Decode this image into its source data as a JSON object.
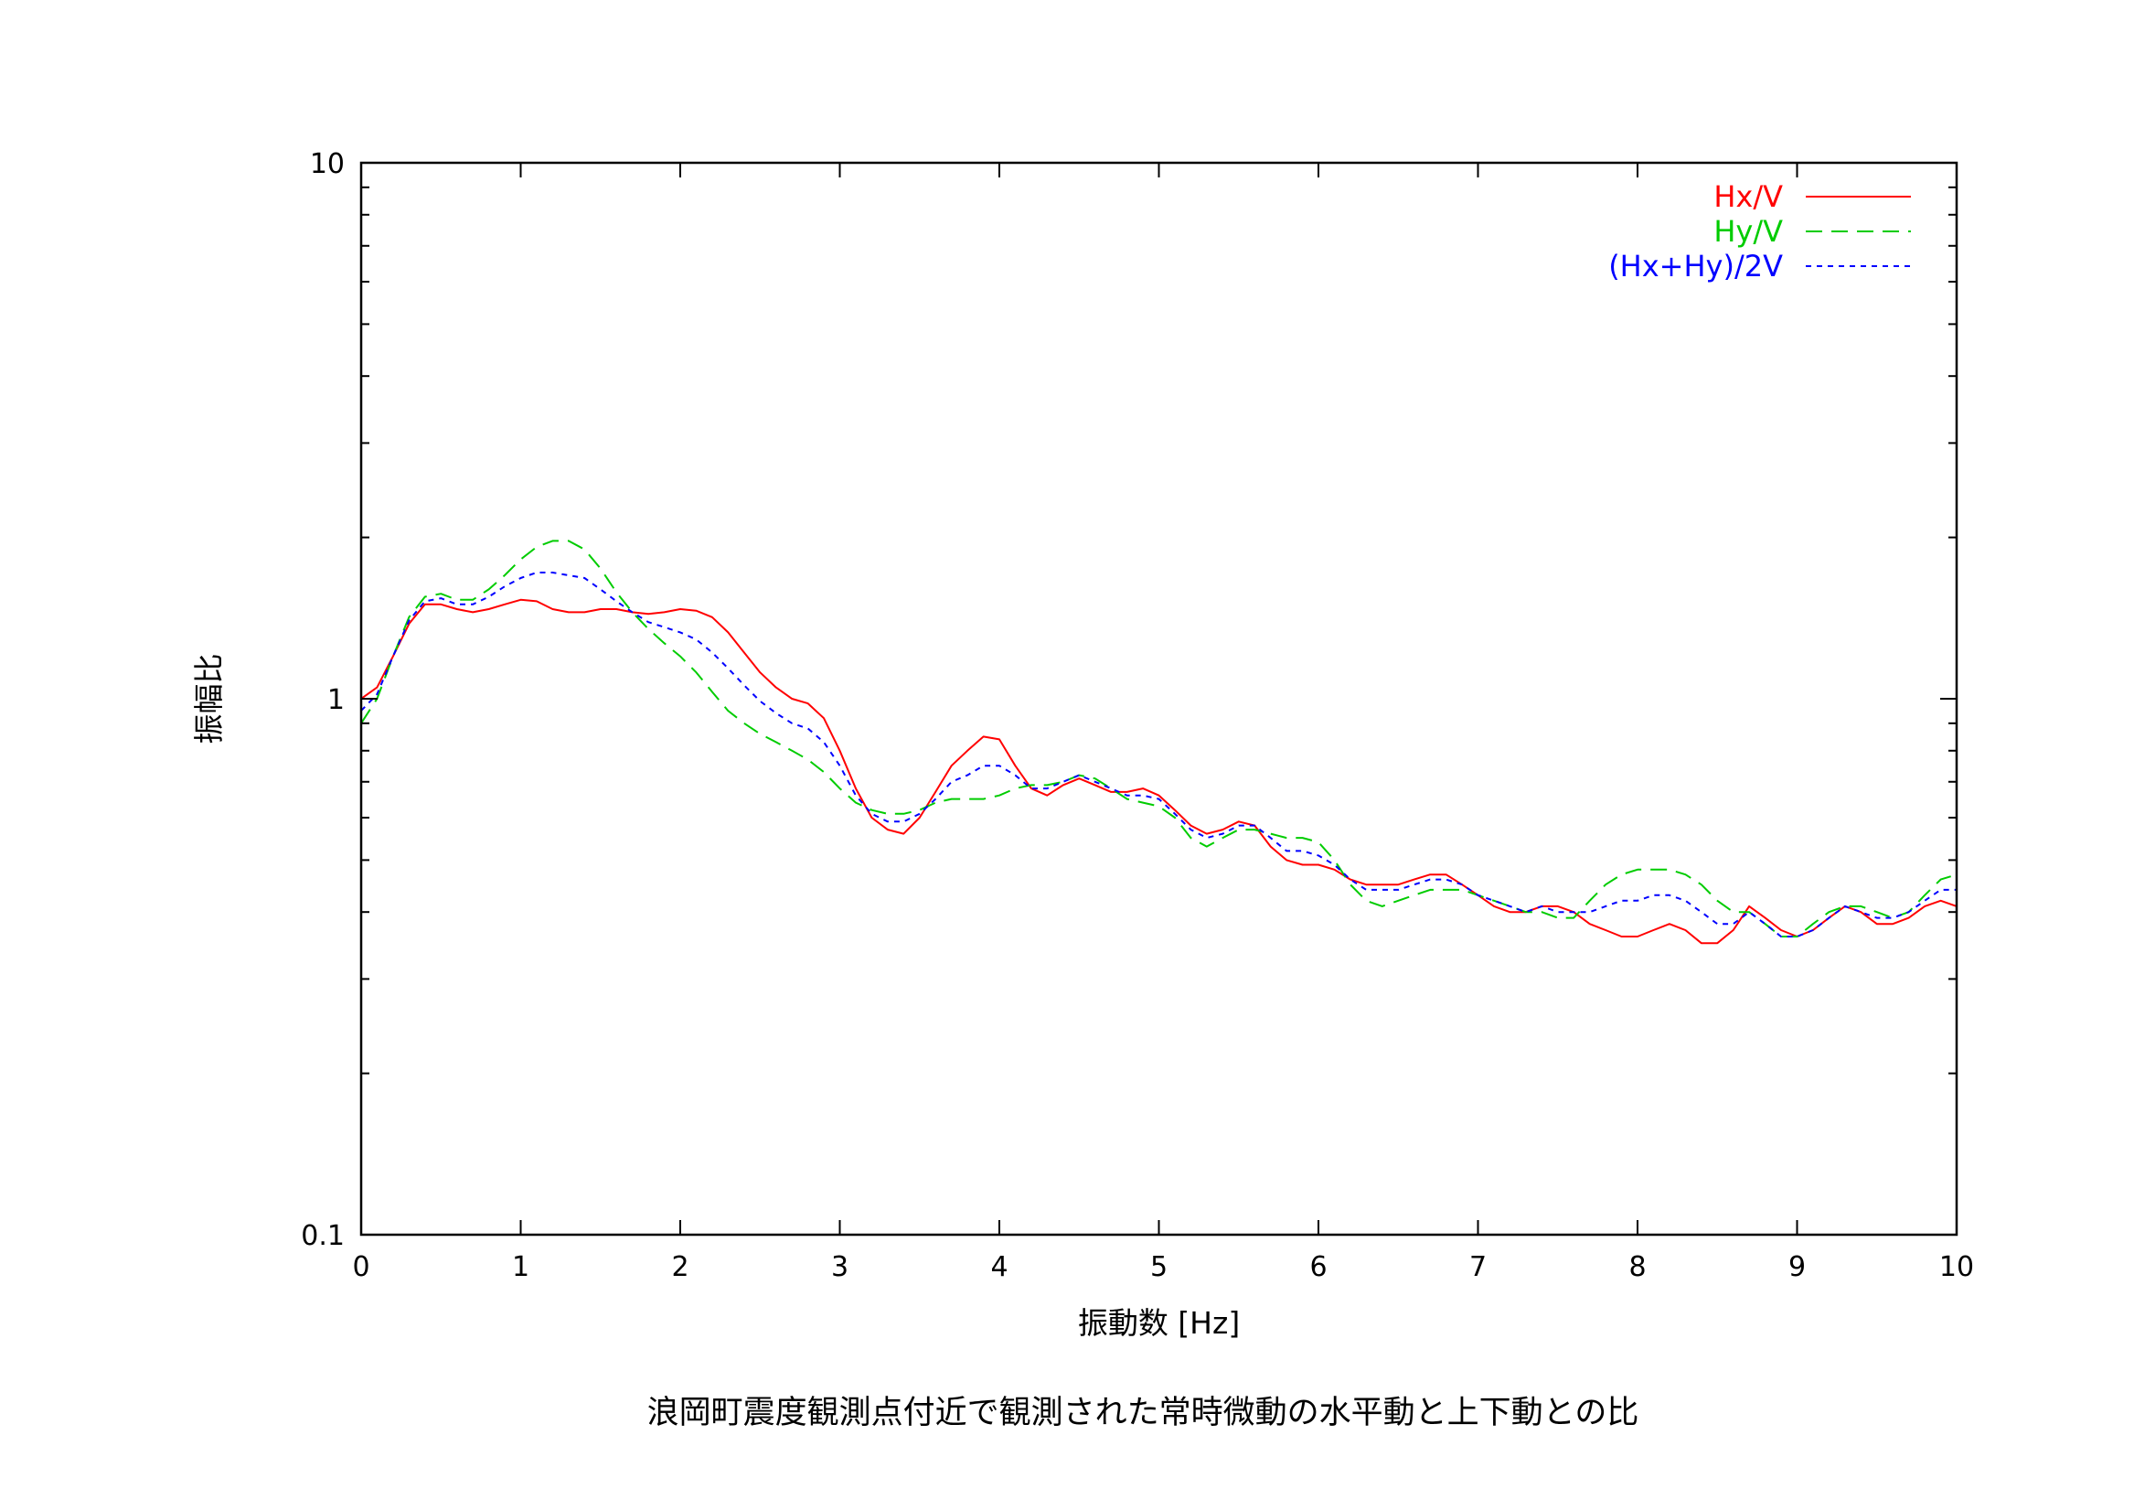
{
  "chart_data": {
    "type": "line",
    "title": "浪岡町震度観測点付近で観測された常時微動の水平動と上下動との比",
    "xlabel": "振動数 [Hz]",
    "ylabel": "振幅比",
    "xlim": [
      0,
      10
    ],
    "ylim": [
      0.1,
      10
    ],
    "yscale": "log",
    "grid": false,
    "legend_position": "top-right",
    "x_ticks": [
      "0",
      "1",
      "2",
      "3",
      "4",
      "5",
      "6",
      "7",
      "8",
      "9",
      "10"
    ],
    "y_ticks": [
      "0.1",
      "1",
      "10"
    ],
    "series": [
      {
        "name": "Hx/V",
        "color": "#ff0000",
        "dash": "solid",
        "x": [
          0,
          0.1,
          0.2,
          0.3,
          0.4,
          0.5,
          0.6,
          0.7,
          0.8,
          0.9,
          1.0,
          1.1,
          1.2,
          1.3,
          1.4,
          1.5,
          1.6,
          1.7,
          1.8,
          1.9,
          2.0,
          2.1,
          2.2,
          2.3,
          2.4,
          2.5,
          2.6,
          2.7,
          2.8,
          2.9,
          3.0,
          3.1,
          3.2,
          3.3,
          3.4,
          3.5,
          3.6,
          3.7,
          3.8,
          3.9,
          4.0,
          4.1,
          4.2,
          4.3,
          4.4,
          4.5,
          4.6,
          4.7,
          4.8,
          4.9,
          5.0,
          5.1,
          5.2,
          5.3,
          5.4,
          5.5,
          5.6,
          5.7,
          5.8,
          5.9,
          6.0,
          6.1,
          6.2,
          6.3,
          6.4,
          6.5,
          6.6,
          6.7,
          6.8,
          6.9,
          7.0,
          7.1,
          7.2,
          7.3,
          7.4,
          7.5,
          7.6,
          7.7,
          7.8,
          7.9,
          8.0,
          8.1,
          8.2,
          8.3,
          8.4,
          8.5,
          8.6,
          8.7,
          8.8,
          8.9,
          9.0,
          9.1,
          9.2,
          9.3,
          9.4,
          9.5,
          9.6,
          9.7,
          9.8,
          9.9,
          10.0
        ],
        "values": [
          1.0,
          1.05,
          1.2,
          1.38,
          1.5,
          1.5,
          1.47,
          1.45,
          1.47,
          1.5,
          1.53,
          1.52,
          1.47,
          1.45,
          1.45,
          1.47,
          1.47,
          1.45,
          1.44,
          1.45,
          1.47,
          1.46,
          1.42,
          1.33,
          1.22,
          1.12,
          1.05,
          1.0,
          0.98,
          0.92,
          0.8,
          0.68,
          0.6,
          0.57,
          0.56,
          0.6,
          0.67,
          0.75,
          0.8,
          0.85,
          0.84,
          0.75,
          0.68,
          0.66,
          0.69,
          0.71,
          0.69,
          0.67,
          0.67,
          0.68,
          0.66,
          0.62,
          0.58,
          0.56,
          0.57,
          0.59,
          0.58,
          0.53,
          0.5,
          0.49,
          0.49,
          0.48,
          0.46,
          0.45,
          0.45,
          0.45,
          0.46,
          0.47,
          0.47,
          0.45,
          0.43,
          0.41,
          0.4,
          0.4,
          0.41,
          0.41,
          0.4,
          0.38,
          0.37,
          0.36,
          0.36,
          0.37,
          0.38,
          0.37,
          0.35,
          0.35,
          0.37,
          0.41,
          0.39,
          0.37,
          0.36,
          0.37,
          0.39,
          0.41,
          0.4,
          0.38,
          0.38,
          0.39,
          0.41,
          0.42,
          0.41
        ]
      },
      {
        "name": "Hy/V",
        "color": "#00cc00",
        "dash": "18,10",
        "x": [
          0,
          0.1,
          0.2,
          0.3,
          0.4,
          0.5,
          0.6,
          0.7,
          0.8,
          0.9,
          1.0,
          1.1,
          1.2,
          1.3,
          1.4,
          1.5,
          1.6,
          1.7,
          1.8,
          1.9,
          2.0,
          2.1,
          2.2,
          2.3,
          2.4,
          2.5,
          2.6,
          2.7,
          2.8,
          2.9,
          3.0,
          3.1,
          3.2,
          3.3,
          3.4,
          3.5,
          3.6,
          3.7,
          3.8,
          3.9,
          4.0,
          4.1,
          4.2,
          4.3,
          4.4,
          4.5,
          4.6,
          4.7,
          4.8,
          4.9,
          5.0,
          5.1,
          5.2,
          5.3,
          5.4,
          5.5,
          5.6,
          5.7,
          5.8,
          5.9,
          6.0,
          6.1,
          6.2,
          6.3,
          6.4,
          6.5,
          6.6,
          6.7,
          6.8,
          6.9,
          7.0,
          7.1,
          7.2,
          7.3,
          7.4,
          7.5,
          7.6,
          7.7,
          7.8,
          7.9,
          8.0,
          8.1,
          8.2,
          8.3,
          8.4,
          8.5,
          8.6,
          8.7,
          8.8,
          8.9,
          9.0,
          9.1,
          9.2,
          9.3,
          9.4,
          9.5,
          9.6,
          9.7,
          9.8,
          9.9,
          10.0
        ],
        "values": [
          0.9,
          1.0,
          1.2,
          1.42,
          1.55,
          1.57,
          1.53,
          1.53,
          1.6,
          1.7,
          1.82,
          1.92,
          1.97,
          1.97,
          1.9,
          1.75,
          1.58,
          1.45,
          1.35,
          1.27,
          1.2,
          1.12,
          1.03,
          0.95,
          0.9,
          0.86,
          0.83,
          0.8,
          0.77,
          0.73,
          0.68,
          0.64,
          0.62,
          0.61,
          0.61,
          0.62,
          0.64,
          0.65,
          0.65,
          0.65,
          0.66,
          0.68,
          0.69,
          0.69,
          0.7,
          0.72,
          0.71,
          0.68,
          0.65,
          0.64,
          0.63,
          0.6,
          0.55,
          0.53,
          0.55,
          0.57,
          0.57,
          0.56,
          0.55,
          0.55,
          0.54,
          0.5,
          0.45,
          0.42,
          0.41,
          0.42,
          0.43,
          0.44,
          0.44,
          0.44,
          0.43,
          0.42,
          0.41,
          0.4,
          0.4,
          0.39,
          0.39,
          0.42,
          0.45,
          0.47,
          0.48,
          0.48,
          0.48,
          0.47,
          0.45,
          0.42,
          0.4,
          0.4,
          0.38,
          0.36,
          0.36,
          0.38,
          0.4,
          0.41,
          0.41,
          0.4,
          0.39,
          0.4,
          0.43,
          0.46,
          0.47
        ]
      },
      {
        "name": "(Hx+Hy)/2V",
        "color": "#0000ff",
        "dash": "6,6",
        "x": [
          0,
          0.1,
          0.2,
          0.3,
          0.4,
          0.5,
          0.6,
          0.7,
          0.8,
          0.9,
          1.0,
          1.1,
          1.2,
          1.3,
          1.4,
          1.5,
          1.6,
          1.7,
          1.8,
          1.9,
          2.0,
          2.1,
          2.2,
          2.3,
          2.4,
          2.5,
          2.6,
          2.7,
          2.8,
          2.9,
          3.0,
          3.1,
          3.2,
          3.3,
          3.4,
          3.5,
          3.6,
          3.7,
          3.8,
          3.9,
          4.0,
          4.1,
          4.2,
          4.3,
          4.4,
          4.5,
          4.6,
          4.7,
          4.8,
          4.9,
          5.0,
          5.1,
          5.2,
          5.3,
          5.4,
          5.5,
          5.6,
          5.7,
          5.8,
          5.9,
          6.0,
          6.1,
          6.2,
          6.3,
          6.4,
          6.5,
          6.6,
          6.7,
          6.8,
          6.9,
          7.0,
          7.1,
          7.2,
          7.3,
          7.4,
          7.5,
          7.6,
          7.7,
          7.8,
          7.9,
          8.0,
          8.1,
          8.2,
          8.3,
          8.4,
          8.5,
          8.6,
          8.7,
          8.8,
          8.9,
          9.0,
          9.1,
          9.2,
          9.3,
          9.4,
          9.5,
          9.6,
          9.7,
          9.8,
          9.9,
          10.0
        ],
        "values": [
          0.95,
          1.02,
          1.2,
          1.4,
          1.52,
          1.54,
          1.5,
          1.5,
          1.55,
          1.62,
          1.68,
          1.72,
          1.72,
          1.7,
          1.68,
          1.6,
          1.52,
          1.45,
          1.39,
          1.36,
          1.33,
          1.29,
          1.22,
          1.14,
          1.06,
          0.99,
          0.94,
          0.9,
          0.88,
          0.83,
          0.75,
          0.66,
          0.61,
          0.59,
          0.59,
          0.61,
          0.65,
          0.7,
          0.72,
          0.75,
          0.75,
          0.72,
          0.68,
          0.68,
          0.7,
          0.72,
          0.7,
          0.68,
          0.66,
          0.66,
          0.65,
          0.61,
          0.57,
          0.55,
          0.56,
          0.58,
          0.58,
          0.55,
          0.52,
          0.52,
          0.51,
          0.49,
          0.46,
          0.44,
          0.44,
          0.44,
          0.45,
          0.46,
          0.46,
          0.45,
          0.43,
          0.42,
          0.41,
          0.4,
          0.41,
          0.4,
          0.4,
          0.4,
          0.41,
          0.42,
          0.42,
          0.43,
          0.43,
          0.42,
          0.4,
          0.38,
          0.38,
          0.4,
          0.38,
          0.36,
          0.36,
          0.37,
          0.39,
          0.41,
          0.4,
          0.39,
          0.39,
          0.4,
          0.42,
          0.44,
          0.44
        ]
      }
    ]
  }
}
